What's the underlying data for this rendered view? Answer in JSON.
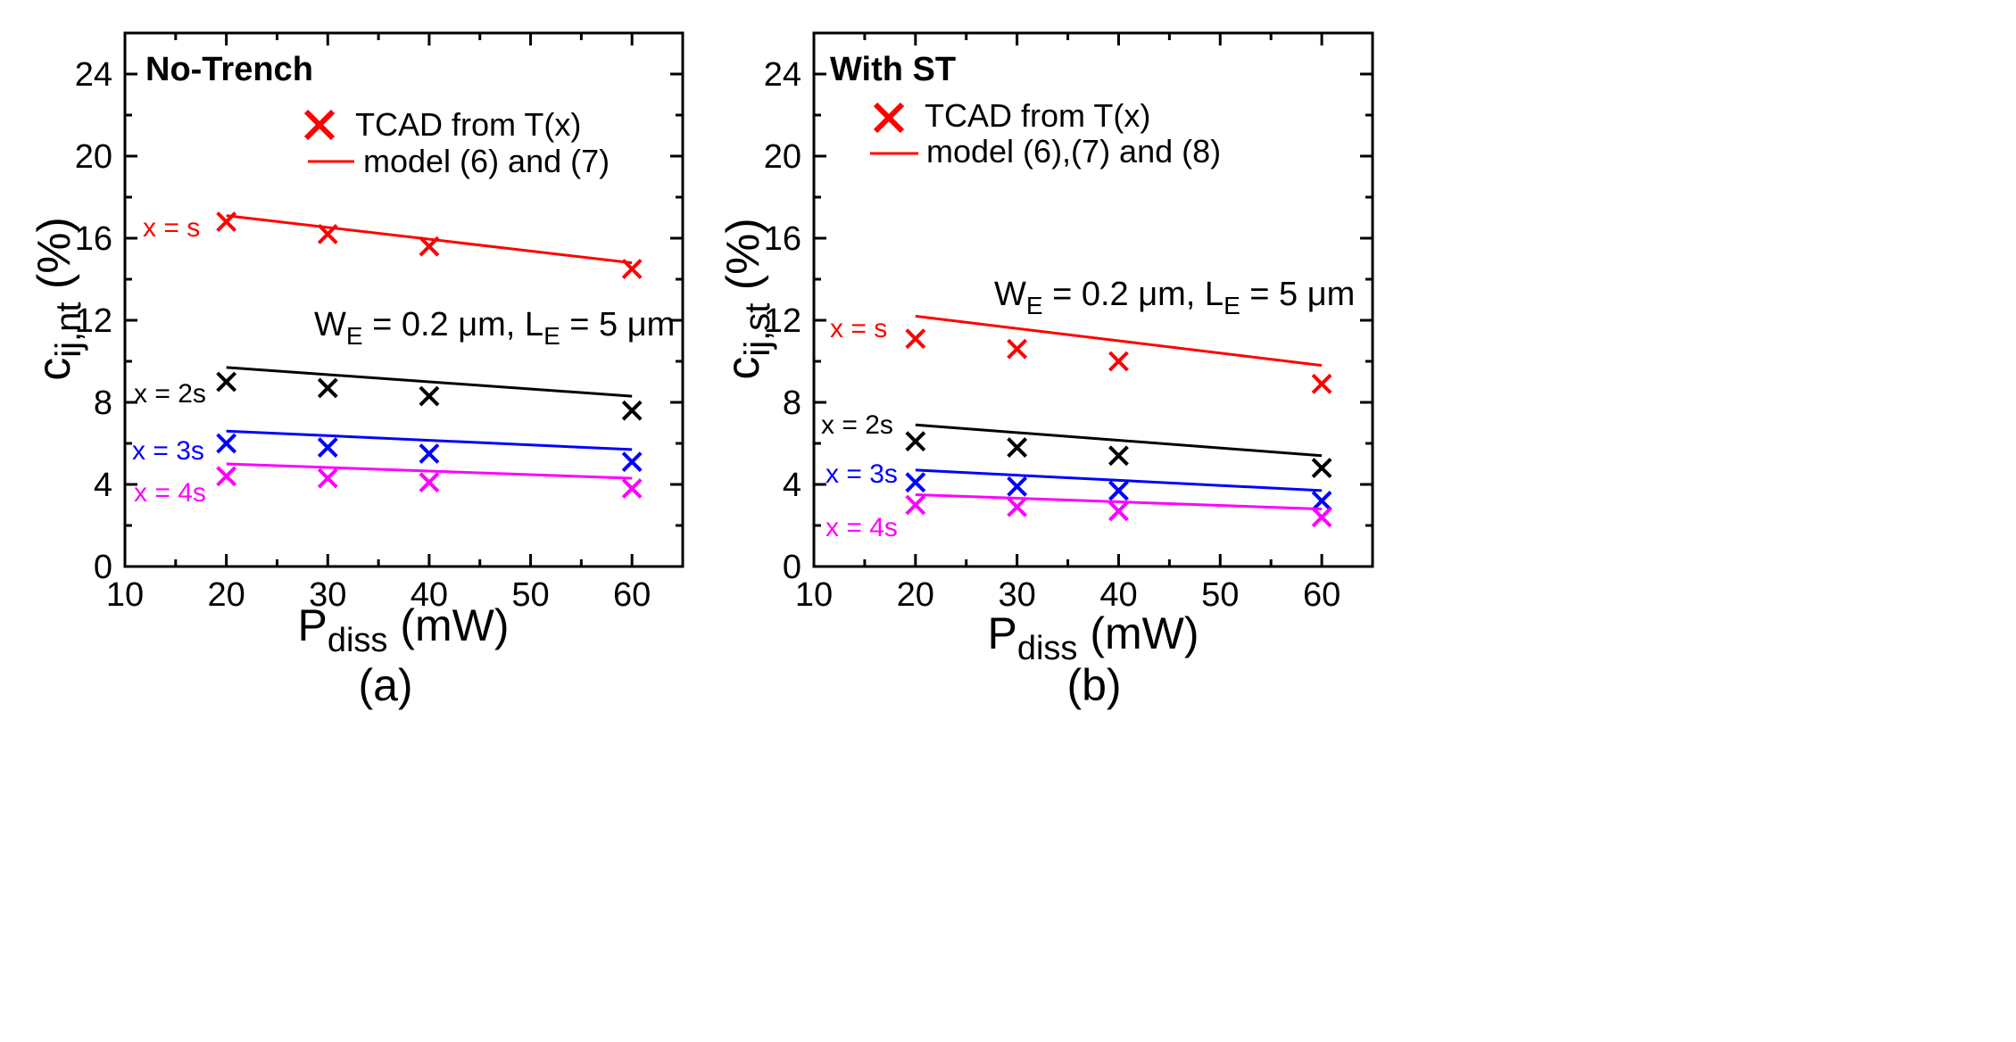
{
  "chart_data": [
    {
      "type": "scatter",
      "panel_label": "(a)",
      "title": "No-Trench",
      "ylabel": {
        "base": "c",
        "sub": "ij,nt",
        "unit": " (%)"
      },
      "xlabel": {
        "base": "P",
        "sub": "diss",
        "unit": " (mW)"
      },
      "xlim": [
        10,
        65
      ],
      "ylim": [
        0,
        26
      ],
      "xticks": [
        10,
        20,
        30,
        40,
        50,
        60
      ],
      "yticks": [
        0,
        4,
        8,
        12,
        16,
        20,
        24
      ],
      "legend": {
        "marker_label": "TCAD from T(x)",
        "line_label": "model (6) and (7)"
      },
      "annotation": {
        "w": "W",
        "wsub": "E",
        "wval": " = 0.2 μm, ",
        "l": "L",
        "lsub": "E",
        "lval": " = 5 μm"
      },
      "series": [
        {
          "name": "x = s",
          "color": "#ff0000",
          "x": [
            20,
            30,
            40,
            60
          ],
          "tcad": [
            16.8,
            16.2,
            15.6,
            14.5
          ],
          "model_x": [
            20,
            60
          ],
          "model_y": [
            17.1,
            14.8
          ]
        },
        {
          "name": "x = 2s",
          "color": "#000000",
          "x": [
            20,
            30,
            40,
            60
          ],
          "tcad": [
            9.0,
            8.7,
            8.3,
            7.6
          ],
          "model_x": [
            20,
            60
          ],
          "model_y": [
            9.7,
            8.3
          ]
        },
        {
          "name": "x = 3s",
          "color": "#0000ff",
          "x": [
            20,
            30,
            40,
            60
          ],
          "tcad": [
            6.0,
            5.8,
            5.5,
            5.1
          ],
          "model_x": [
            20,
            60
          ],
          "model_y": [
            6.6,
            5.7
          ]
        },
        {
          "name": "x = 4s",
          "color": "#ff00ff",
          "x": [
            20,
            30,
            40,
            60
          ],
          "tcad": [
            4.4,
            4.3,
            4.1,
            3.8
          ],
          "model_x": [
            20,
            60
          ],
          "model_y": [
            5.0,
            4.3
          ]
        }
      ]
    },
    {
      "type": "scatter",
      "panel_label": "(b)",
      "title": "With ST",
      "ylabel": {
        "base": "c",
        "sub": "ij,st",
        "unit": " (%)"
      },
      "xlabel": {
        "base": "P",
        "sub": "diss",
        "unit": " (mW)"
      },
      "xlim": [
        10,
        65
      ],
      "ylim": [
        0,
        26
      ],
      "xticks": [
        10,
        20,
        30,
        40,
        50,
        60
      ],
      "yticks": [
        0,
        4,
        8,
        12,
        16,
        20,
        24
      ],
      "legend": {
        "marker_label": "TCAD from T(x)",
        "line_label": "model (6),(7) and (8)"
      },
      "annotation": {
        "w": "W",
        "wsub": "E",
        "wval": " = 0.2 μm, ",
        "l": "L",
        "lsub": "E",
        "lval": " = 5 μm"
      },
      "series": [
        {
          "name": "x = s",
          "color": "#ff0000",
          "x": [
            20,
            30,
            40,
            60
          ],
          "tcad": [
            11.1,
            10.6,
            10.0,
            8.9
          ],
          "model_x": [
            20,
            60
          ],
          "model_y": [
            12.2,
            9.8
          ]
        },
        {
          "name": "x = 2s",
          "color": "#000000",
          "x": [
            20,
            30,
            40,
            60
          ],
          "tcad": [
            6.1,
            5.8,
            5.4,
            4.8
          ],
          "model_x": [
            20,
            60
          ],
          "model_y": [
            6.9,
            5.4
          ]
        },
        {
          "name": "x = 3s",
          "color": "#0000ff",
          "x": [
            20,
            30,
            40,
            60
          ],
          "tcad": [
            4.1,
            3.9,
            3.7,
            3.2
          ],
          "model_x": [
            20,
            60
          ],
          "model_y": [
            4.7,
            3.7
          ]
        },
        {
          "name": "x = 4s",
          "color": "#ff00ff",
          "x": [
            20,
            30,
            40,
            60
          ],
          "tcad": [
            3.0,
            2.9,
            2.7,
            2.4
          ],
          "model_x": [
            20,
            60
          ],
          "model_y": [
            3.5,
            2.8
          ]
        }
      ]
    }
  ]
}
